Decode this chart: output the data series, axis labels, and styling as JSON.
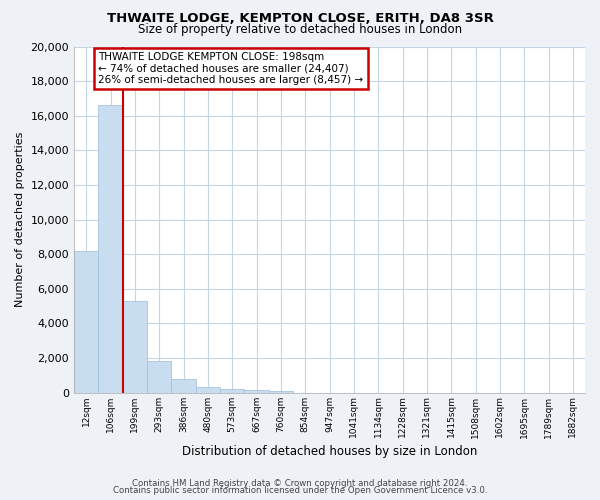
{
  "title": "THWAITE LODGE, KEMPTON CLOSE, ERITH, DA8 3SR",
  "subtitle": "Size of property relative to detached houses in London",
  "xlabel": "Distribution of detached houses by size in London",
  "ylabel": "Number of detached properties",
  "bar_labels": [
    "12sqm",
    "106sqm",
    "199sqm",
    "293sqm",
    "386sqm",
    "480sqm",
    "573sqm",
    "667sqm",
    "760sqm",
    "854sqm",
    "947sqm",
    "1041sqm",
    "1134sqm",
    "1228sqm",
    "1321sqm",
    "1415sqm",
    "1508sqm",
    "1602sqm",
    "1695sqm",
    "1789sqm",
    "1882sqm"
  ],
  "bar_values": [
    8200,
    16600,
    5300,
    1800,
    800,
    350,
    200,
    150,
    100,
    0,
    0,
    0,
    0,
    0,
    0,
    0,
    0,
    0,
    0,
    0,
    0
  ],
  "bar_color": "#c8ddf0",
  "bar_edge_color": "#9bbdd6",
  "highlight_color": "#cc0000",
  "red_line_after_bar": 1,
  "annotation_title": "THWAITE LODGE KEMPTON CLOSE: 198sqm",
  "annotation_line1": "← 74% of detached houses are smaller (24,407)",
  "annotation_line2": "26% of semi-detached houses are larger (8,457) →",
  "ylim": [
    0,
    20000
  ],
  "yticks": [
    0,
    2000,
    4000,
    6000,
    8000,
    10000,
    12000,
    14000,
    16000,
    18000,
    20000
  ],
  "footnote1": "Contains HM Land Registry data © Crown copyright and database right 2024.",
  "footnote2": "Contains public sector information licensed under the Open Government Licence v3.0.",
  "bg_color": "#eef2f7",
  "plot_bg_color": "#ffffff",
  "grid_color": "#c5d5e5"
}
